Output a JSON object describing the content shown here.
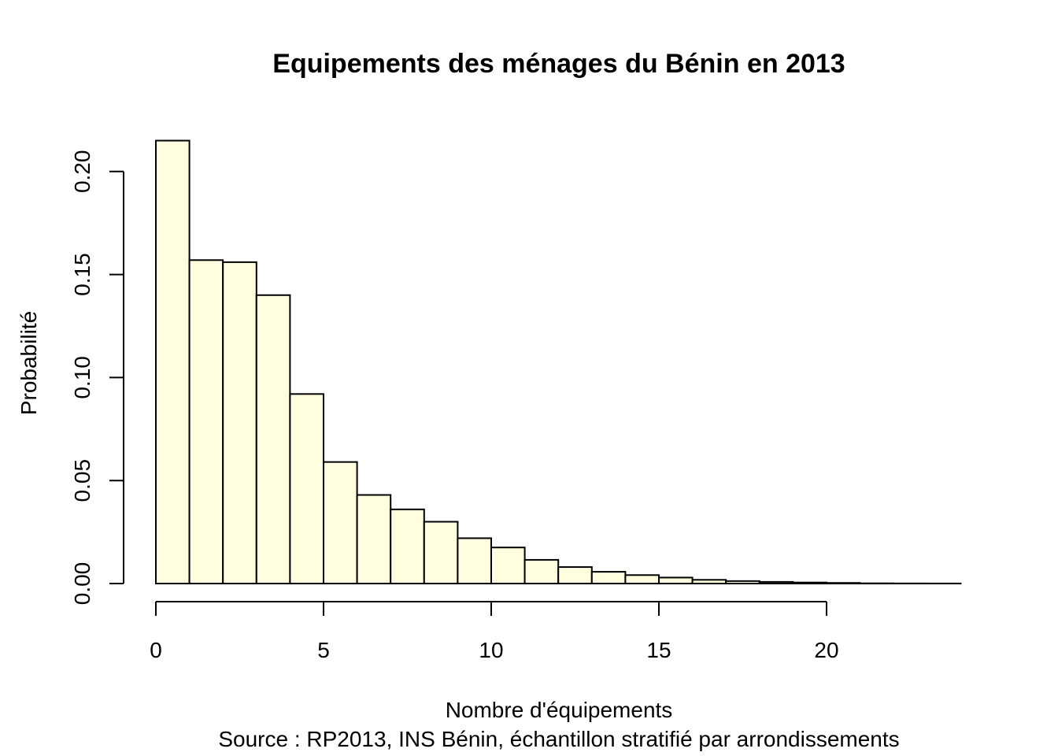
{
  "chart_data": {
    "type": "bar",
    "title": "Equipements des ménages du Bénin en 2013",
    "xlabel": "Nombre d'équipements",
    "source": "Source : RP2013, INS Bénin, échantillon stratifié par arrondissements",
    "ylabel": "Probabilité",
    "bins": [
      {
        "x0": 0,
        "x1": 1,
        "value": 0.215
      },
      {
        "x0": 1,
        "x1": 2,
        "value": 0.157
      },
      {
        "x0": 2,
        "x1": 3,
        "value": 0.156
      },
      {
        "x0": 3,
        "x1": 4,
        "value": 0.14
      },
      {
        "x0": 4,
        "x1": 5,
        "value": 0.092
      },
      {
        "x0": 5,
        "x1": 6,
        "value": 0.059
      },
      {
        "x0": 6,
        "x1": 7,
        "value": 0.043
      },
      {
        "x0": 7,
        "x1": 8,
        "value": 0.036
      },
      {
        "x0": 8,
        "x1": 9,
        "value": 0.03
      },
      {
        "x0": 9,
        "x1": 10,
        "value": 0.022
      },
      {
        "x0": 10,
        "x1": 11,
        "value": 0.0175
      },
      {
        "x0": 11,
        "x1": 12,
        "value": 0.0115
      },
      {
        "x0": 12,
        "x1": 13,
        "value": 0.008
      },
      {
        "x0": 13,
        "x1": 14,
        "value": 0.0057
      },
      {
        "x0": 14,
        "x1": 15,
        "value": 0.0041
      },
      {
        "x0": 15,
        "x1": 16,
        "value": 0.0029
      },
      {
        "x0": 16,
        "x1": 17,
        "value": 0.0018
      },
      {
        "x0": 17,
        "x1": 18,
        "value": 0.0012
      },
      {
        "x0": 18,
        "x1": 19,
        "value": 0.0008
      },
      {
        "x0": 19,
        "x1": 20,
        "value": 0.0005
      },
      {
        "x0": 20,
        "x1": 21,
        "value": 0.0003
      },
      {
        "x0": 21,
        "x1": 22,
        "value": 0.0001
      },
      {
        "x0": 22,
        "x1": 23,
        "value": 5e-05
      },
      {
        "x0": 23,
        "x1": 24,
        "value": 3e-05
      }
    ],
    "xlim": [
      0,
      24
    ],
    "ylim": [
      0,
      0.215
    ],
    "xticks": [
      0,
      5,
      10,
      15,
      20
    ],
    "xtick_labels": [
      "0",
      "5",
      "10",
      "15",
      "20"
    ],
    "yticks": [
      0,
      0.05,
      0.1,
      0.15,
      0.2
    ],
    "ytick_labels": [
      "0.00",
      "0.05",
      "0.10",
      "0.15",
      "0.20"
    ],
    "grid": false,
    "colors": {
      "bar_fill": "#ffffe0",
      "bar_stroke": "#000000"
    }
  }
}
